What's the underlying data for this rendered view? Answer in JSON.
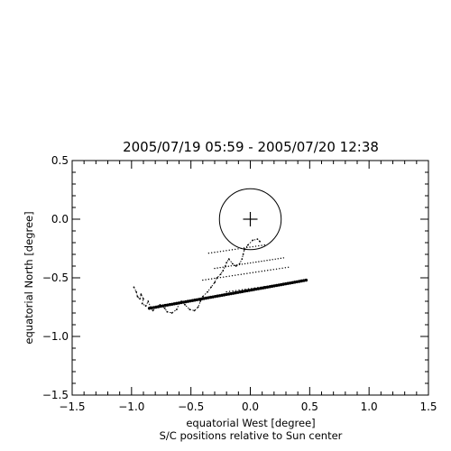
{
  "chart_data": {
    "type": "scatter",
    "title": "2005/07/19 05:59 - 2005/07/20 12:38",
    "xlabel": "equatorial West [degree]",
    "ylabel": "equatorial North [degree]",
    "caption": "S/C positions relative to Sun center",
    "xlim": [
      -1.5,
      1.5
    ],
    "ylim": [
      -1.5,
      0.5
    ],
    "xticks": [
      -1.5,
      -1.0,
      -0.5,
      0.0,
      0.5,
      1.0,
      1.5
    ],
    "yticks": [
      -1.5,
      -1.0,
      -0.5,
      0.0,
      0.5
    ],
    "xtick_labels": [
      "−1.5",
      "−1.0",
      "−0.5",
      "0.0",
      "0.5",
      "1.0",
      "1.5"
    ],
    "ytick_labels": [
      "−1.5",
      "−1.0",
      "−0.5",
      "0.0",
      "0.5"
    ],
    "grid": false,
    "sun": {
      "center": [
        0.0,
        0.0
      ],
      "radius": 0.26
    },
    "series": [
      {
        "style": "bold-track",
        "segments": [
          {
            "start": [
              -0.85,
              -0.76
            ],
            "end": [
              0.47,
              -0.52
            ],
            "n": 70
          }
        ]
      },
      {
        "style": "dotted-rasters",
        "segments": [
          {
            "start": [
              -0.3,
              -0.42
            ],
            "end": [
              0.28,
              -0.33
            ],
            "n": 26
          },
          {
            "start": [
              -0.4,
              -0.52
            ],
            "end": [
              0.32,
              -0.41
            ],
            "n": 30
          },
          {
            "start": [
              -0.35,
              -0.29
            ],
            "end": [
              0.12,
              -0.22
            ],
            "n": 20
          },
          {
            "start": [
              -0.2,
              -0.62
            ],
            "end": [
              0.3,
              -0.55
            ],
            "n": 20
          }
        ]
      },
      {
        "style": "loop-trajectory",
        "points": [
          [
            -0.98,
            -0.58
          ],
          [
            -0.96,
            -0.62
          ],
          [
            -0.95,
            -0.66
          ],
          [
            -0.93,
            -0.68
          ],
          [
            -0.92,
            -0.64
          ],
          [
            -0.9,
            -0.68
          ],
          [
            -0.91,
            -0.72
          ],
          [
            -0.88,
            -0.74
          ],
          [
            -0.86,
            -0.7
          ],
          [
            -0.84,
            -0.75
          ],
          [
            -0.82,
            -0.78
          ],
          [
            -0.79,
            -0.75
          ],
          [
            -0.76,
            -0.73
          ],
          [
            -0.72,
            -0.76
          ],
          [
            -0.7,
            -0.79
          ],
          [
            -0.66,
            -0.8
          ],
          [
            -0.62,
            -0.77
          ],
          [
            -0.6,
            -0.72
          ],
          [
            -0.58,
            -0.7
          ],
          [
            -0.55,
            -0.73
          ],
          [
            -0.51,
            -0.77
          ],
          [
            -0.47,
            -0.78
          ],
          [
            -0.44,
            -0.75
          ],
          [
            -0.42,
            -0.7
          ],
          [
            -0.4,
            -0.66
          ],
          [
            -0.36,
            -0.62
          ],
          [
            -0.33,
            -0.58
          ],
          [
            -0.3,
            -0.54
          ],
          [
            -0.28,
            -0.5
          ],
          [
            -0.25,
            -0.47
          ],
          [
            -0.23,
            -0.44
          ],
          [
            -0.21,
            -0.4
          ],
          [
            -0.2,
            -0.37
          ],
          [
            -0.18,
            -0.34
          ],
          [
            -0.15,
            -0.38
          ],
          [
            -0.12,
            -0.4
          ],
          [
            -0.09,
            -0.38
          ],
          [
            -0.07,
            -0.34
          ],
          [
            -0.06,
            -0.3
          ],
          [
            -0.05,
            -0.26
          ],
          [
            -0.02,
            -0.22
          ],
          [
            0.02,
            -0.18
          ],
          [
            0.06,
            -0.17
          ],
          [
            0.08,
            -0.19
          ]
        ]
      }
    ]
  }
}
